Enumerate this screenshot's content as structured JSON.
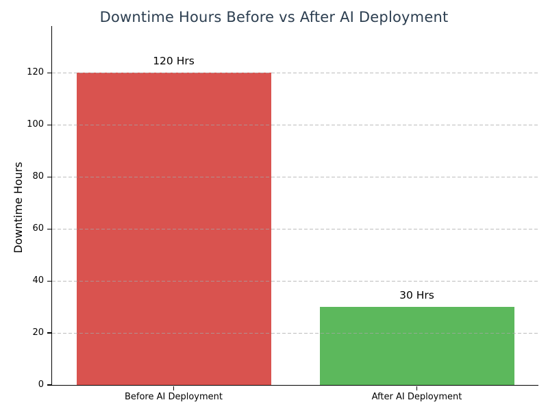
{
  "chart_data": {
    "type": "bar",
    "title": "Downtime Hours Before vs After AI Deployment",
    "xlabel": "",
    "ylabel": "Downtime Hours",
    "categories": [
      "Before AI Deployment",
      "After AI Deployment"
    ],
    "values": [
      120,
      30
    ],
    "bar_labels": [
      "120 Hrs",
      "30 Hrs"
    ],
    "bar_colors": [
      "#d9534f",
      "#5cb85c"
    ],
    "yticks": [
      0,
      20,
      40,
      60,
      80,
      100,
      120
    ],
    "ylim": [
      0,
      138
    ],
    "bar_width_fraction": 0.8,
    "grid": "horizontal-dashed-above-bars",
    "legend": "none"
  },
  "colors": {
    "title": "#2c3e50",
    "bar_before": "#d9534f",
    "bar_after": "#5cb85c",
    "grid": "#a5a5a5",
    "axis": "#000000",
    "text": "#000000"
  }
}
